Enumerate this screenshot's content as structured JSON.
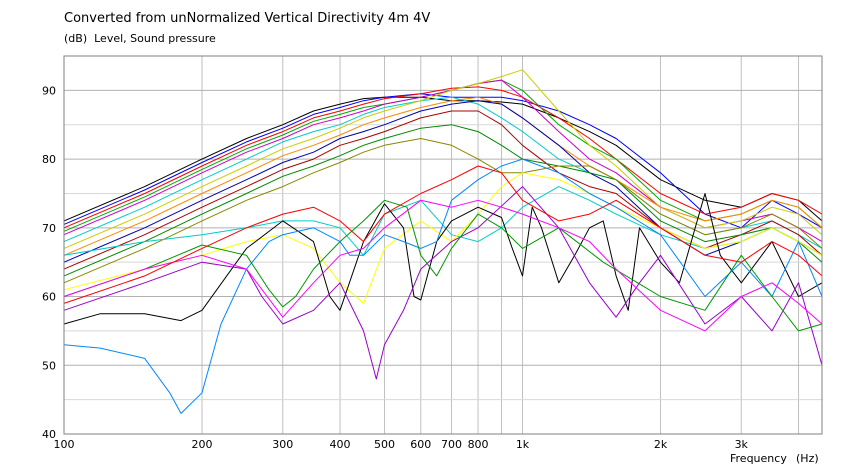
{
  "chart_data": {
    "type": "line",
    "title": "Converted from unNormalized Vertical Directivity 4m 4V",
    "ylabel_unit": "(dB)",
    "ylabel": "Level, Sound pressure",
    "xlabel": "Frequency",
    "xlabel_unit": "(Hz)",
    "xscale": "log",
    "xlim": [
      100,
      4500
    ],
    "ylim": [
      40,
      95
    ],
    "grid": true,
    "x_ticks": [
      {
        "value": 100,
        "label": "100"
      },
      {
        "value": 200,
        "label": "200"
      },
      {
        "value": 300,
        "label": "300"
      },
      {
        "value": 400,
        "label": "400"
      },
      {
        "value": 500,
        "label": "500"
      },
      {
        "value": 600,
        "label": "600"
      },
      {
        "value": 700,
        "label": "700"
      },
      {
        "value": 800,
        "label": "800"
      },
      {
        "value": 1000,
        "label": "1k"
      },
      {
        "value": 2000,
        "label": "2k"
      },
      {
        "value": 3000,
        "label": "3k"
      }
    ],
    "y_ticks": [
      {
        "value": 90,
        "label": "90"
      },
      {
        "value": 80,
        "label": "80"
      },
      {
        "value": 70,
        "label": "70"
      },
      {
        "value": 60,
        "label": "60"
      },
      {
        "value": 50,
        "label": "50"
      },
      {
        "value": 40,
        "label": "40"
      }
    ],
    "series": [
      {
        "color": "#000000",
        "x": [
          100,
          150,
          200,
          250,
          300,
          350,
          400,
          450,
          500,
          600,
          700,
          800,
          900,
          1000,
          1200,
          1400,
          1600,
          2000,
          2500,
          3000,
          3500,
          4000,
          4500
        ],
        "y": [
          71,
          76,
          80,
          83,
          85,
          87,
          88,
          88.8,
          89,
          89,
          88.5,
          88.5,
          88.3,
          88,
          86,
          84,
          82,
          77,
          74,
          73,
          75,
          74,
          71
        ]
      },
      {
        "color": "#0000ff",
        "x": [
          100,
          150,
          200,
          250,
          300,
          350,
          400,
          450,
          500,
          600,
          700,
          800,
          900,
          1000,
          1200,
          1400,
          1600,
          2000,
          2500,
          3000,
          3500,
          4000,
          4500
        ],
        "y": [
          70.5,
          75.5,
          79.5,
          82.5,
          84.5,
          86.5,
          87.5,
          88.5,
          89,
          89.5,
          89,
          89,
          89,
          88.5,
          87,
          85,
          83,
          78,
          72,
          70,
          74,
          72,
          70
        ]
      },
      {
        "color": "#ff0000",
        "x": [
          100,
          150,
          200,
          250,
          300,
          350,
          400,
          450,
          500,
          600,
          700,
          800,
          900,
          1000,
          1200,
          1400,
          1600,
          2000,
          2500,
          3000,
          3500,
          4000,
          4500
        ],
        "y": [
          70,
          75,
          79,
          82,
          84,
          86,
          87,
          88,
          88.8,
          89.5,
          90.3,
          90.5,
          90,
          89,
          86,
          83,
          80,
          75,
          72,
          73,
          75,
          74,
          72
        ]
      },
      {
        "color": "#00aa00",
        "x": [
          100,
          150,
          200,
          250,
          300,
          350,
          400,
          450,
          500,
          600,
          700,
          800,
          900,
          1000,
          1200,
          1400,
          1600,
          2000,
          2500,
          3000,
          3500,
          4000,
          4500
        ],
        "y": [
          69.5,
          74.5,
          78.5,
          81.5,
          83.5,
          85.5,
          86.5,
          87.5,
          88,
          89,
          90,
          91,
          91.5,
          90,
          85,
          82,
          80,
          74,
          71,
          72,
          74,
          73,
          70
        ]
      },
      {
        "color": "#cc00cc",
        "x": [
          100,
          150,
          200,
          250,
          300,
          350,
          400,
          450,
          500,
          600,
          700,
          800,
          900,
          1000,
          1200,
          1400,
          1600,
          2000,
          2500,
          3000,
          3500,
          4000,
          4500
        ],
        "y": [
          69,
          74,
          78,
          81,
          83,
          85,
          86,
          87,
          88,
          89,
          90,
          91,
          91.5,
          89,
          84,
          80,
          78,
          73,
          70,
          71,
          72,
          70,
          68
        ]
      },
      {
        "color": "#00cccc",
        "x": [
          100,
          150,
          200,
          250,
          300,
          350,
          400,
          450,
          500,
          600,
          700,
          800,
          900,
          1000,
          1200,
          1400,
          1600,
          2000,
          2500,
          3000,
          3500,
          4000,
          4500
        ],
        "y": [
          68,
          73,
          77,
          80,
          82.5,
          84,
          85,
          86.5,
          87.5,
          88.5,
          89,
          88,
          86,
          84,
          80,
          78,
          77,
          72,
          69,
          70,
          71,
          69,
          67
        ]
      },
      {
        "color": "#cccc00",
        "x": [
          100,
          150,
          200,
          250,
          300,
          350,
          400,
          450,
          500,
          600,
          700,
          800,
          900,
          1000,
          1200,
          1400,
          1600,
          2000,
          2500,
          3000,
          3500,
          4000,
          4500
        ],
        "y": [
          67,
          72,
          76,
          79,
          81.5,
          83,
          84.5,
          86,
          87,
          88.5,
          90,
          91,
          92,
          93,
          87,
          82,
          79,
          73,
          70,
          71,
          73,
          72,
          69
        ]
      },
      {
        "color": "#ff8800",
        "x": [
          100,
          150,
          200,
          250,
          300,
          350,
          400,
          450,
          500,
          600,
          700,
          800,
          900,
          1000,
          1200,
          1400,
          1600,
          2000,
          2500,
          3000,
          3500,
          4000,
          4500
        ],
        "y": [
          66,
          71,
          75,
          78,
          80.5,
          82,
          83.5,
          85,
          86,
          87.5,
          88.5,
          89,
          88,
          86,
          82,
          79,
          77,
          73,
          71,
          72,
          74,
          73,
          70
        ]
      },
      {
        "color": "#0000aa",
        "x": [
          100,
          150,
          200,
          250,
          300,
          350,
          400,
          450,
          500,
          600,
          700,
          800,
          900,
          1000,
          1200,
          1400,
          1600,
          2000,
          2500,
          3000,
          3500,
          4000,
          4500
        ],
        "y": [
          65,
          70,
          74,
          77,
          79.5,
          81,
          83,
          84,
          85,
          87,
          88,
          88.5,
          88,
          86,
          82,
          78,
          76,
          70,
          66,
          68,
          70,
          68,
          66
        ]
      },
      {
        "color": "#aa0000",
        "x": [
          100,
          150,
          200,
          250,
          300,
          350,
          400,
          450,
          500,
          600,
          700,
          800,
          900,
          1000,
          1200,
          1400,
          1600,
          2000,
          2500,
          3000,
          3500,
          4000,
          4500
        ],
        "y": [
          64,
          69,
          73,
          76,
          78.5,
          80,
          82,
          83,
          84,
          86,
          87,
          87,
          85,
          82,
          78,
          76,
          75,
          70,
          67,
          69,
          71,
          69,
          66
        ]
      },
      {
        "color": "#008800",
        "x": [
          100,
          150,
          200,
          250,
          300,
          350,
          400,
          450,
          500,
          600,
          700,
          800,
          900,
          1000,
          1200,
          1400,
          1600,
          2000,
          2500,
          3000,
          3500,
          4000,
          4500
        ],
        "y": [
          63,
          68,
          72,
          75,
          77.5,
          79,
          80.5,
          82,
          83,
          84.5,
          85,
          84,
          82,
          80,
          79,
          78,
          77,
          71,
          68,
          69,
          70,
          68,
          65
        ]
      },
      {
        "color": "#888800",
        "x": [
          100,
          150,
          200,
          250,
          300,
          350,
          400,
          450,
          500,
          600,
          700,
          800,
          900,
          1000,
          1200,
          1400,
          1600,
          2000,
          2500,
          3000,
          3500,
          4000,
          4500
        ],
        "y": [
          62,
          67,
          71,
          74,
          76,
          78,
          79.5,
          81,
          82,
          83,
          82,
          80,
          78,
          78,
          79,
          79,
          77,
          72,
          69,
          70,
          72,
          70,
          67
        ]
      },
      {
        "color": "#00cccc",
        "x": [
          100,
          150,
          200,
          250,
          300,
          350,
          400,
          450,
          500,
          600,
          700,
          800,
          900,
          1000,
          1200,
          1400,
          1600,
          2000,
          2500,
          3000,
          3500,
          4000,
          4500
        ],
        "y": [
          66,
          68,
          69,
          70,
          71,
          71,
          70,
          66,
          72,
          74,
          69,
          68,
          70,
          73,
          76,
          74,
          72,
          69,
          67,
          68,
          70,
          68,
          66
        ]
      },
      {
        "color": "#ffff00",
        "x": [
          100,
          150,
          200,
          250,
          300,
          350,
          400,
          450,
          500,
          600,
          700,
          800,
          900,
          1000,
          1200,
          1400,
          1600,
          2000,
          2500,
          3000,
          3500,
          4000,
          4500
        ],
        "y": [
          61,
          64,
          66,
          68,
          69,
          67,
          62,
          59,
          67,
          71,
          68,
          72,
          76,
          78,
          77,
          75,
          73,
          70,
          67,
          68,
          70,
          68,
          66
        ]
      },
      {
        "color": "#000000",
        "x": [
          100,
          120,
          150,
          180,
          200,
          250,
          300,
          350,
          380,
          400,
          450,
          500,
          550,
          580,
          600,
          650,
          700,
          800,
          900,
          950,
          1000,
          1050,
          1100,
          1200,
          1300,
          1400,
          1500,
          1600,
          1700,
          1800,
          2000,
          2200,
          2500,
          2700,
          3000,
          3500,
          4000,
          4500
        ],
        "y": [
          56,
          57.5,
          57.5,
          56.5,
          58,
          67,
          71,
          68,
          60,
          58,
          68,
          73.5,
          70,
          60,
          59.5,
          68,
          71,
          73,
          71.5,
          67,
          63,
          73,
          70,
          62,
          66,
          70,
          71,
          63,
          58,
          70,
          65,
          62,
          75,
          66,
          62,
          68,
          60,
          62
        ]
      },
      {
        "color": "#0088ff",
        "x": [
          100,
          120,
          150,
          170,
          180,
          200,
          220,
          250,
          280,
          300,
          350,
          400,
          420,
          450,
          500,
          550,
          600,
          650,
          700,
          800,
          900,
          1000,
          1200,
          1400,
          1600,
          2000,
          2500,
          3000,
          3500,
          4000,
          4500
        ],
        "y": [
          53,
          52.5,
          51,
          46,
          43,
          46,
          56,
          64,
          68,
          69,
          70,
          68,
          66,
          66,
          69,
          68,
          67,
          68,
          74,
          77,
          79,
          80,
          78,
          75,
          73,
          69,
          60,
          65,
          60,
          68,
          60
        ]
      },
      {
        "color": "#9900cc",
        "x": [
          100,
          150,
          200,
          250,
          270,
          300,
          350,
          400,
          450,
          480,
          500,
          550,
          600,
          700,
          800,
          1000,
          1200,
          1400,
          1600,
          1800,
          2000,
          2500,
          3000,
          3500,
          4000,
          4500
        ],
        "y": [
          58,
          62,
          65,
          64,
          60,
          56,
          58,
          62,
          55,
          48,
          53,
          58,
          64,
          68,
          70,
          76,
          70,
          62,
          57,
          62,
          66,
          56,
          60,
          55,
          62,
          50
        ]
      },
      {
        "color": "#009900",
        "x": [
          100,
          150,
          200,
          250,
          280,
          300,
          320,
          350,
          400,
          450,
          500,
          560,
          600,
          650,
          700,
          800,
          900,
          1000,
          1200,
          1500,
          2000,
          2500,
          3000,
          3500,
          4000,
          4500
        ],
        "y": [
          60,
          64,
          67.5,
          66,
          61,
          58.5,
          60,
          64,
          68,
          71,
          74,
          73,
          66,
          63,
          67,
          72,
          70,
          67,
          70,
          65,
          60,
          58,
          66,
          60,
          55,
          56
        ]
      },
      {
        "color": "#ff00ff",
        "x": [
          100,
          150,
          200,
          250,
          300,
          350,
          400,
          450,
          500,
          600,
          700,
          800,
          900,
          1000,
          1200,
          1400,
          1600,
          2000,
          2500,
          3000,
          3500,
          4000,
          4500
        ],
        "y": [
          60,
          64,
          66,
          64,
          57,
          62,
          66,
          67,
          70,
          74,
          73,
          74,
          73,
          72,
          70,
          68,
          64,
          58,
          55,
          60,
          62,
          59,
          56
        ]
      },
      {
        "color": "#ff0000",
        "x": [
          100,
          150,
          200,
          250,
          300,
          350,
          400,
          450,
          500,
          600,
          700,
          800,
          900,
          1000,
          1200,
          1400,
          1600,
          2000,
          2500,
          3000,
          3500,
          4000,
          4500
        ],
        "y": [
          59,
          63,
          67,
          70,
          72,
          73,
          71,
          68,
          72,
          75,
          77,
          79,
          78,
          74,
          71,
          72,
          74,
          70,
          66,
          65,
          68,
          66,
          63
        ]
      }
    ]
  }
}
